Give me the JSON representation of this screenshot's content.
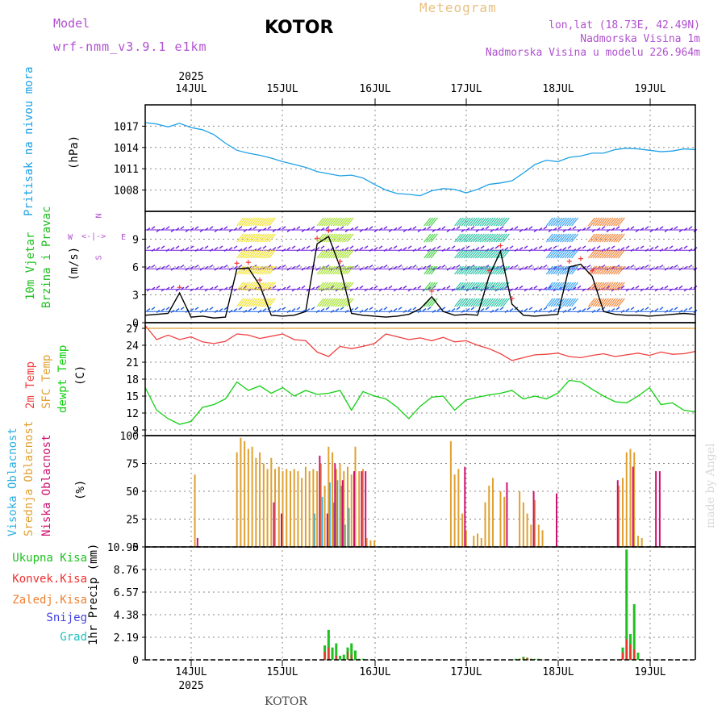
{
  "header": {
    "model_label": "Model",
    "model_name": "wrf-nmm_v3.9.1 e1km",
    "location": "KOTOR",
    "product": "Meteogram",
    "coords": "lon,lat (18.73E, 42.49N)",
    "elevation": "Nadmorska Visina 1m",
    "elevation_model": "Nadmorska Visina u modelu 226.964m",
    "watermark": "made by Angel",
    "footer_location": "KOTOR"
  },
  "time_axis": {
    "year": "2025",
    "days": [
      "14JUL",
      "15JUL",
      "16JUL",
      "17JUL",
      "18JUL",
      "19JUL"
    ]
  },
  "colors": {
    "pressure": "#1ea0e6",
    "temp2m": "#f04040",
    "sfc": "#e0a030",
    "dewpt": "#10d010",
    "high_cloud": "#30b0e0",
    "mid_cloud": "#e0a030",
    "low_cloud": "#d01070",
    "total_precip": "#20c020",
    "conv_precip": "#f03030",
    "frz_precip": "#f08030",
    "snow": "#4040e0",
    "hail": "#20c0c0",
    "label_purple": "#b050d0"
  },
  "chart_data": [
    {
      "type": "line",
      "title": "Pritisak na nivou mora",
      "ylabel": "(hPa)",
      "ylim": [
        1005,
        1020
      ],
      "yticks": [
        "1017",
        "1014",
        "1011",
        "1008"
      ],
      "grid": true,
      "series": [
        {
          "name": "Pritisak na nivou mora",
          "x_hours": [
            0,
            3,
            6,
            9,
            12,
            15,
            18,
            21,
            24,
            27,
            30,
            33,
            36,
            39,
            42,
            45,
            48,
            51,
            54,
            57,
            60,
            63,
            66,
            69,
            72,
            75,
            78,
            81,
            84,
            87,
            90,
            93,
            96,
            99,
            102,
            105,
            108,
            111,
            114,
            117,
            120,
            123,
            126,
            129,
            132,
            135,
            138,
            141,
            144
          ],
          "values": [
            1017.5,
            1017.3,
            1016.9,
            1017.4,
            1016.8,
            1016.5,
            1015.8,
            1014.6,
            1013.6,
            1013.2,
            1012.9,
            1012.5,
            1012.0,
            1011.6,
            1011.2,
            1010.6,
            1010.3,
            1010.0,
            1010.1,
            1009.7,
            1008.8,
            1008.0,
            1007.5,
            1007.4,
            1007.2,
            1007.9,
            1008.2,
            1008.1,
            1007.6,
            1008.1,
            1008.8,
            1009.0,
            1009.3,
            1010.4,
            1011.6,
            1012.2,
            1012.0,
            1012.6,
            1012.8,
            1013.2,
            1013.2,
            1013.7,
            1013.9,
            1013.8,
            1013.6,
            1013.4,
            1013.5,
            1013.8,
            1013.7
          ]
        }
      ]
    },
    {
      "type": "line",
      "title": "10m Vjetar Brzina i Pravac",
      "ylabel": "(m/s)",
      "ylim": [
        0,
        12
      ],
      "yticks": [
        "9",
        "6",
        "3",
        "0"
      ],
      "grid": true,
      "series": [
        {
          "name": "Brzina",
          "x_hours": [
            0,
            3,
            6,
            9,
            12,
            15,
            18,
            21,
            24,
            27,
            30,
            33,
            36,
            39,
            42,
            45,
            48,
            51,
            54,
            57,
            60,
            63,
            66,
            69,
            72,
            75,
            78,
            81,
            84,
            87,
            90,
            93,
            96,
            99,
            102,
            105,
            108,
            111,
            114,
            117,
            120,
            123,
            126,
            129,
            132,
            135,
            138,
            141,
            144
          ],
          "values": [
            0.8,
            0.9,
            1.0,
            3.2,
            0.6,
            0.7,
            0.5,
            0.6,
            5.8,
            5.9,
            4.0,
            0.8,
            0.7,
            0.8,
            1.2,
            8.5,
            9.3,
            6.0,
            1.0,
            0.8,
            0.7,
            0.6,
            0.7,
            0.9,
            1.5,
            2.8,
            1.2,
            0.8,
            0.9,
            0.8,
            5.0,
            7.7,
            2.0,
            0.8,
            0.7,
            0.8,
            0.9,
            6.0,
            6.3,
            5.0,
            1.2,
            0.9,
            0.8,
            0.8,
            0.7,
            0.8,
            0.9,
            1.0,
            0.9
          ]
        }
      ]
    },
    {
      "type": "line",
      "title": "2m Temp, SFC Temp, dewpt Temp",
      "ylabel": "(C)",
      "ylim": [
        8,
        28
      ],
      "yticks": [
        "27",
        "24",
        "21",
        "18",
        "15",
        "12",
        "9"
      ],
      "grid": true,
      "series": [
        {
          "name": "2m Temp",
          "x_hours": [
            0,
            3,
            6,
            9,
            12,
            15,
            18,
            21,
            24,
            27,
            30,
            33,
            36,
            39,
            42,
            45,
            48,
            51,
            54,
            57,
            60,
            63,
            66,
            69,
            72,
            75,
            78,
            81,
            84,
            87,
            90,
            93,
            96,
            99,
            102,
            105,
            108,
            111,
            114,
            117,
            120,
            123,
            126,
            129,
            132,
            135,
            138,
            141,
            144
          ],
          "values": [
            27.5,
            25.0,
            25.8,
            25.0,
            25.5,
            24.6,
            24.3,
            24.7,
            26.0,
            25.8,
            25.2,
            25.6,
            26.0,
            25.0,
            24.8,
            22.8,
            22.0,
            23.8,
            23.4,
            23.8,
            24.3,
            26.0,
            25.5,
            25.0,
            25.3,
            24.8,
            25.4,
            24.6,
            24.8,
            24.0,
            23.4,
            22.5,
            21.3,
            21.8,
            22.3,
            22.4,
            22.6,
            22.0,
            21.8,
            22.2,
            22.5,
            22.0,
            22.3,
            22.6,
            22.2,
            22.8,
            22.4,
            22.5,
            22.9
          ]
        },
        {
          "name": "SFC Temp",
          "x_hours": [
            0,
            144
          ],
          "values": [
            27.0,
            27.0
          ]
        },
        {
          "name": "dewpt Temp",
          "x_hours": [
            0,
            3,
            6,
            9,
            12,
            15,
            18,
            21,
            24,
            27,
            30,
            33,
            36,
            39,
            42,
            45,
            48,
            51,
            54,
            57,
            60,
            63,
            66,
            69,
            72,
            75,
            78,
            81,
            84,
            87,
            90,
            93,
            96,
            99,
            102,
            105,
            108,
            111,
            114,
            117,
            120,
            123,
            126,
            129,
            132,
            135,
            138,
            141,
            144
          ],
          "values": [
            16.5,
            12.5,
            11.0,
            10.0,
            10.5,
            13.0,
            13.5,
            14.5,
            17.5,
            16.0,
            16.8,
            15.5,
            16.5,
            15.0,
            16.0,
            15.3,
            15.5,
            16.0,
            12.5,
            15.8,
            15.0,
            14.5,
            13.0,
            11.0,
            13.2,
            14.8,
            15.0,
            12.5,
            14.3,
            14.8,
            15.2,
            15.5,
            16.0,
            14.5,
            15.0,
            14.5,
            15.5,
            17.8,
            17.5,
            16.2,
            15.0,
            14.0,
            13.8,
            15.0,
            16.5,
            13.5,
            13.8,
            12.5,
            12.2
          ]
        }
      ]
    },
    {
      "type": "bar",
      "title": "Visoka Oblacnost, Srednja Oblacnost, Niska Oblacnost",
      "ylabel": "(%)",
      "ylim": [
        0,
        100
      ],
      "yticks": [
        "100",
        "75",
        "50",
        "25",
        "0"
      ],
      "grid": true,
      "series": [
        {
          "name": "Visoka Oblacnost",
          "x_hours": [
            44,
            46,
            48,
            49,
            50,
            51,
            52,
            53
          ],
          "values": [
            30,
            45,
            58,
            40,
            60,
            55,
            20,
            35
          ]
        },
        {
          "name": "Srednja Oblacnost",
          "x_hours": [
            13,
            24,
            25,
            26,
            27,
            28,
            29,
            30,
            31,
            32,
            33,
            34,
            35,
            36,
            37,
            38,
            39,
            40,
            41,
            42,
            43,
            44,
            45,
            46,
            47,
            48,
            49,
            50,
            51,
            52,
            53,
            54,
            55,
            56,
            57,
            58,
            59,
            60,
            80,
            81,
            82,
            83,
            84,
            86,
            87,
            88,
            89,
            90,
            91,
            93,
            94,
            98,
            99,
            100,
            101,
            102,
            103,
            104,
            124,
            125,
            126,
            127,
            128,
            129,
            130
          ],
          "values": [
            65,
            85,
            98,
            95,
            88,
            90,
            80,
            85,
            75,
            70,
            80,
            70,
            72,
            68,
            70,
            68,
            70,
            68,
            62,
            72,
            68,
            70,
            68,
            75,
            55,
            90,
            85,
            70,
            75,
            68,
            72,
            65,
            90,
            68,
            70,
            8,
            6,
            6,
            95,
            65,
            70,
            30,
            15,
            10,
            12,
            8,
            40,
            55,
            62,
            50,
            45,
            50,
            40,
            30,
            20,
            42,
            20,
            15,
            55,
            62,
            85,
            88,
            85,
            10,
            8
          ]
        },
        {
          "name": "Niska Oblacnost",
          "x_hours": [
            14,
            34,
            36,
            46,
            48,
            50,
            52,
            55,
            57,
            58,
            84,
            95,
            102,
            108,
            124,
            128,
            134,
            135
          ],
          "values": [
            8,
            40,
            30,
            82,
            30,
            75,
            60,
            68,
            68,
            68,
            72,
            58,
            50,
            48,
            60,
            72,
            68,
            68
          ]
        }
      ]
    },
    {
      "type": "bar",
      "title": "1hr Precip",
      "ylabel": "(mm)",
      "ylim": [
        0,
        10.95
      ],
      "yticks": [
        "10.95",
        "8.76",
        "6.57",
        "4.38",
        "2.19",
        "0"
      ],
      "grid": true,
      "series": [
        {
          "name": "Ukupna Kisa",
          "x_hours": [
            47,
            48,
            49,
            50,
            51,
            52,
            53,
            54,
            55,
            56,
            57,
            97,
            98,
            99,
            100,
            101,
            102,
            103,
            125,
            126,
            127,
            128,
            129
          ],
          "values": [
            1.4,
            2.9,
            1.2,
            1.6,
            0.4,
            0.5,
            1.2,
            1.6,
            0.9,
            0.1,
            0.1,
            0.1,
            0.1,
            0.3,
            0.2,
            0.1,
            0.1,
            0.1,
            1.2,
            10.7,
            2.5,
            5.4,
            0.7
          ]
        },
        {
          "name": "Konvek.Kisa",
          "x_hours": [
            47,
            48,
            50,
            53,
            54,
            98,
            99,
            100,
            101,
            125,
            126,
            127,
            128
          ],
          "values": [
            0.8,
            1.2,
            0.4,
            0.8,
            0.5,
            0.1,
            0.2,
            0.2,
            0.1,
            0.7,
            2.0,
            1.5,
            1.0
          ]
        }
      ]
    }
  ],
  "precip_legend": [
    {
      "label": "Ukupna Kisa",
      "color": "#20c020"
    },
    {
      "label": "Konvek.Kisa",
      "color": "#f03030"
    },
    {
      "label": "Zaledj.Kisa",
      "color": "#f08030"
    },
    {
      "label": "Snijeg",
      "color": "#4040e0"
    },
    {
      "label": "Grad",
      "color": "#20c0c0"
    }
  ],
  "wind_compass": {
    "n": "N",
    "s": "S",
    "e": "E",
    "w": "W"
  }
}
